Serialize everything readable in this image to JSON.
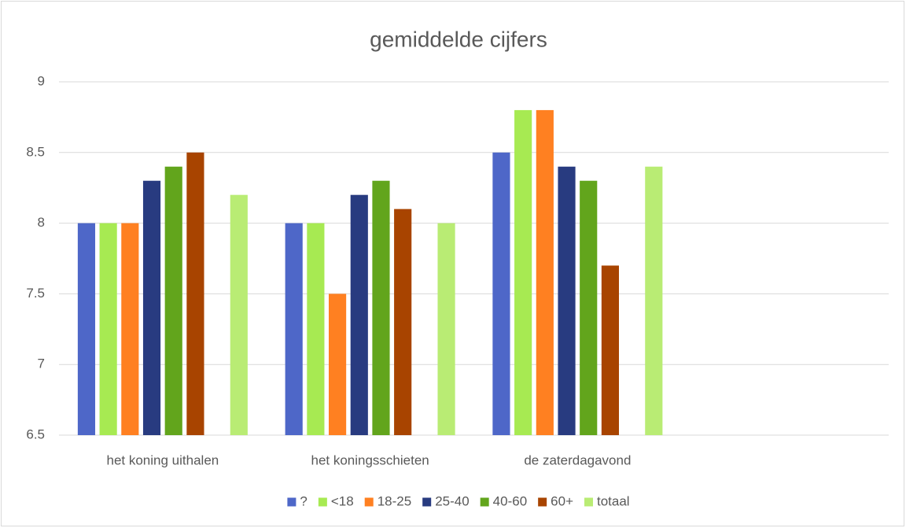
{
  "chart_data": {
    "type": "bar",
    "title": "gemiddelde cijfers",
    "categories": [
      "het koning uithalen",
      "het koningsschieten",
      "de zaterdagavond",
      null
    ],
    "series": [
      {
        "name": "?",
        "color": "#4e67c8",
        "values": [
          8,
          8,
          8.5,
          null
        ]
      },
      {
        "name": "<18",
        "color": "#a7ea52",
        "values": [
          8,
          8,
          8.8,
          null
        ]
      },
      {
        "name": "18-25",
        "color": "#ff8021",
        "values": [
          8,
          7.5,
          8.8,
          null
        ]
      },
      {
        "name": "25-40",
        "color": "#283b80",
        "values": [
          8.3,
          8.2,
          8.4,
          null
        ]
      },
      {
        "name": "40-60",
        "color": "#62a51c",
        "values": [
          8.4,
          8.3,
          8.3,
          null
        ]
      },
      {
        "name": "60+",
        "color": "#a84400",
        "values": [
          8.5,
          8.1,
          7.7,
          null
        ]
      },
      {
        "name": "totaal",
        "color": "#b9ec74",
        "values": [
          8.2,
          8,
          8.4,
          null
        ]
      }
    ],
    "ylim": [
      6.5,
      9
    ],
    "yticks": [
      6.5,
      7,
      7.5,
      8,
      8.5,
      9
    ],
    "grid": true,
    "legend": "bottom"
  }
}
